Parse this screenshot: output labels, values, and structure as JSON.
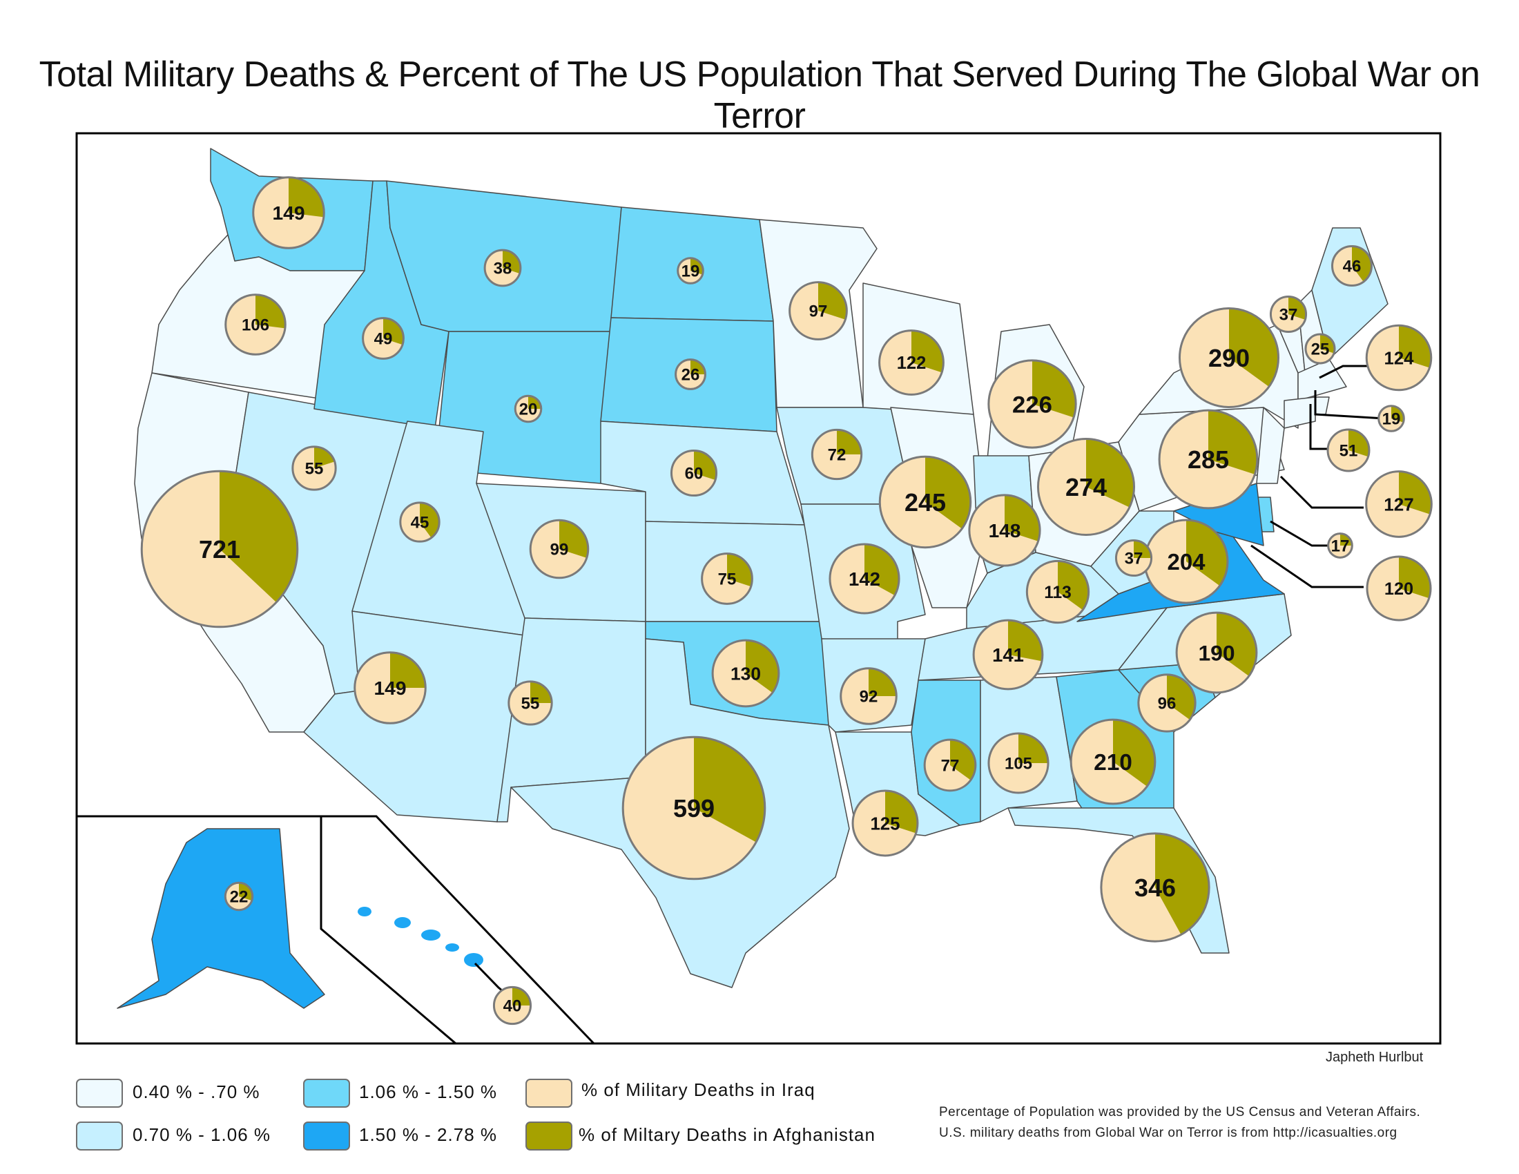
{
  "title": "Total Military Deaths & Percent of The US Population That Served During The Global War on Terror",
  "colors": {
    "tier1": "#effaff",
    "tier2": "#c6f0ff",
    "tier3": "#6fd8f9",
    "tier4": "#1ea7f4",
    "iraq": "#fbe2b7",
    "afghanistan": "#a6a100",
    "circle_border": "#7a7a7a",
    "state_border": "#4a4a4a"
  },
  "legend": {
    "tier1_label": "0.40 % - .70 %",
    "tier2_label": "0.70 % - 1.06 %",
    "tier3_label": "1.06 % - 1.50 %",
    "tier4_label": "1.50 % - 2.78 %",
    "iraq_label": "% of Military Deaths in Iraq",
    "afghanistan_label": "% of Miltary Deaths in Afghanistan"
  },
  "author": "Japheth Hurlbut",
  "source_line_1": "Percentage of Population was provided by the US Census and Veteran Affairs.",
  "source_line_2": "U.S. military deaths from Global War on Terror is from http://icasualties.org",
  "states": [
    {
      "id": "WA",
      "deaths": 149,
      "afg": 0.27,
      "tier": 3
    },
    {
      "id": "OR",
      "deaths": 106,
      "afg": 0.27,
      "tier": 1
    },
    {
      "id": "CA",
      "deaths": 721,
      "afg": 0.37,
      "tier": 1
    },
    {
      "id": "NV",
      "deaths": 55,
      "afg": 0.2,
      "tier": 2
    },
    {
      "id": "ID",
      "deaths": 49,
      "afg": 0.3,
      "tier": 3
    },
    {
      "id": "MT",
      "deaths": 38,
      "afg": 0.3,
      "tier": 3
    },
    {
      "id": "WY",
      "deaths": 20,
      "afg": 0.25,
      "tier": 3
    },
    {
      "id": "UT",
      "deaths": 45,
      "afg": 0.4,
      "tier": 2
    },
    {
      "id": "AZ",
      "deaths": 149,
      "afg": 0.25,
      "tier": 2
    },
    {
      "id": "CO",
      "deaths": 99,
      "afg": 0.3,
      "tier": 2
    },
    {
      "id": "NM",
      "deaths": 55,
      "afg": 0.25,
      "tier": 2
    },
    {
      "id": "ND",
      "deaths": 19,
      "afg": 0.3,
      "tier": 3
    },
    {
      "id": "SD",
      "deaths": 26,
      "afg": 0.25,
      "tier": 3
    },
    {
      "id": "NE",
      "deaths": 60,
      "afg": 0.3,
      "tier": 2
    },
    {
      "id": "KS",
      "deaths": 75,
      "afg": 0.3,
      "tier": 2
    },
    {
      "id": "OK",
      "deaths": 130,
      "afg": 0.35,
      "tier": 3
    },
    {
      "id": "TX",
      "deaths": 599,
      "afg": 0.33,
      "tier": 2
    },
    {
      "id": "MN",
      "deaths": 97,
      "afg": 0.3,
      "tier": 1
    },
    {
      "id": "IA",
      "deaths": 72,
      "afg": 0.25,
      "tier": 2
    },
    {
      "id": "MO",
      "deaths": 142,
      "afg": 0.33,
      "tier": 2
    },
    {
      "id": "AR",
      "deaths": 92,
      "afg": 0.25,
      "tier": 2
    },
    {
      "id": "LA",
      "deaths": 125,
      "afg": 0.3,
      "tier": 2
    },
    {
      "id": "WI",
      "deaths": 122,
      "afg": 0.3,
      "tier": 1
    },
    {
      "id": "IL",
      "deaths": 245,
      "afg": 0.35,
      "tier": 1
    },
    {
      "id": "MI",
      "deaths": 226,
      "afg": 0.3,
      "tier": 1
    },
    {
      "id": "IN",
      "deaths": 148,
      "afg": 0.3,
      "tier": 2
    },
    {
      "id": "OH",
      "deaths": 274,
      "afg": 0.32,
      "tier": 1
    },
    {
      "id": "KY",
      "deaths": 113,
      "afg": 0.35,
      "tier": 2
    },
    {
      "id": "TN",
      "deaths": 141,
      "afg": 0.28,
      "tier": 2
    },
    {
      "id": "MS",
      "deaths": 77,
      "afg": 0.35,
      "tier": 3
    },
    {
      "id": "AL",
      "deaths": 105,
      "afg": 0.25,
      "tier": 2
    },
    {
      "id": "GA",
      "deaths": 210,
      "afg": 0.35,
      "tier": 3
    },
    {
      "id": "FL",
      "deaths": 346,
      "afg": 0.42,
      "tier": 2
    },
    {
      "id": "SC",
      "deaths": 96,
      "afg": 0.35,
      "tier": 3
    },
    {
      "id": "NC",
      "deaths": 190,
      "afg": 0.35,
      "tier": 2
    },
    {
      "id": "VA",
      "deaths": 204,
      "afg": 0.35,
      "tier": 4
    },
    {
      "id": "WV",
      "deaths": 37,
      "afg": 0.25,
      "tier": 2
    },
    {
      "id": "PA",
      "deaths": 285,
      "afg": 0.3,
      "tier": 1
    },
    {
      "id": "NY",
      "deaths": 290,
      "afg": 0.35,
      "tier": 1
    },
    {
      "id": "VT",
      "deaths": 37,
      "afg": 0.3,
      "tier": 1
    },
    {
      "id": "NH",
      "deaths": 25,
      "afg": 0.3,
      "tier": 1
    },
    {
      "id": "ME",
      "deaths": 46,
      "afg": 0.4,
      "tier": 2
    },
    {
      "id": "MA",
      "deaths": 124,
      "afg": 0.3,
      "tier": 1
    },
    {
      "id": "RI",
      "deaths": 19,
      "afg": 0.3,
      "tier": 1
    },
    {
      "id": "CT",
      "deaths": 51,
      "afg": 0.3,
      "tier": 1
    },
    {
      "id": "NJ",
      "deaths": 127,
      "afg": 0.3,
      "tier": 1
    },
    {
      "id": "DE",
      "deaths": 17,
      "afg": 0.25,
      "tier": 3
    },
    {
      "id": "MD",
      "deaths": 120,
      "afg": 0.3,
      "tier": 4
    },
    {
      "id": "AK",
      "deaths": 22,
      "afg": 0.3,
      "tier": 4
    },
    {
      "id": "HI",
      "deaths": 40,
      "afg": 0.25,
      "tier": 4
    }
  ]
}
